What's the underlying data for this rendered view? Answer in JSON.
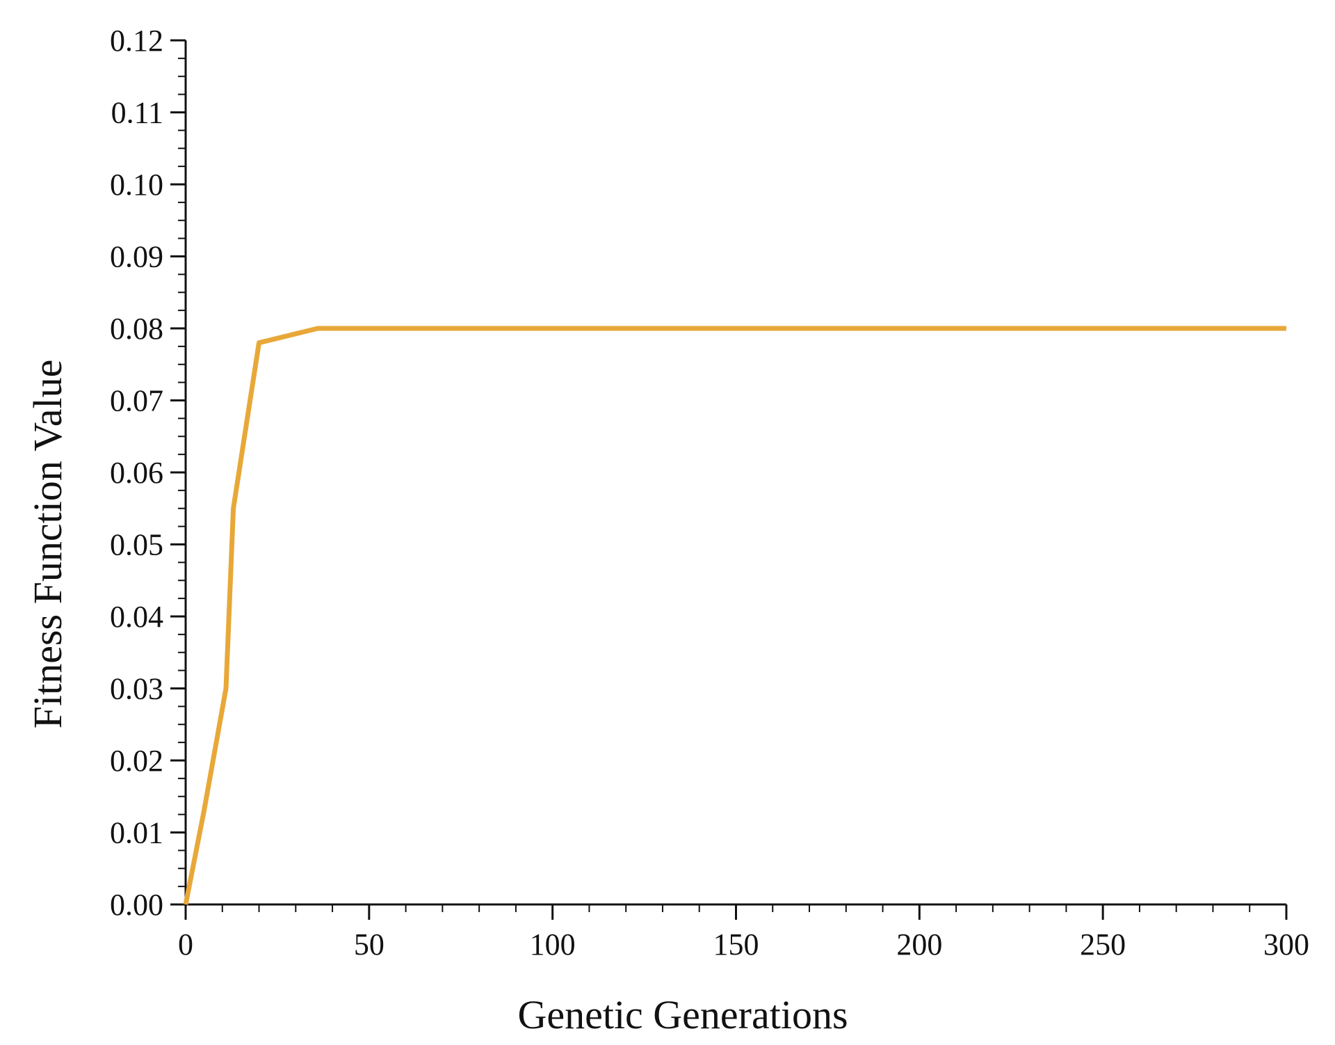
{
  "chart_data": {
    "type": "line",
    "title": "",
    "xlabel": "Genetic Generations",
    "ylabel": "Fitness Function Value",
    "xlim": [
      0,
      300
    ],
    "ylim": [
      0,
      0.12
    ],
    "x_ticks": [
      "0",
      "50",
      "100",
      "150",
      "200",
      "250",
      "300"
    ],
    "y_ticks": [
      "0.00",
      "0.01",
      "0.02",
      "0.03",
      "0.04",
      "0.05",
      "0.06",
      "0.07",
      "0.08",
      "0.09",
      "0.10",
      "0.11",
      "0.12"
    ],
    "grid": false,
    "legend": "none",
    "line_color": "#E8A838",
    "series": [
      {
        "x": [
          0,
          5,
          11,
          13,
          20,
          36,
          100,
          200,
          300
        ],
        "values": [
          0.0,
          0.013,
          0.03,
          0.055,
          0.078,
          0.08,
          0.08,
          0.08,
          0.08
        ]
      }
    ]
  }
}
